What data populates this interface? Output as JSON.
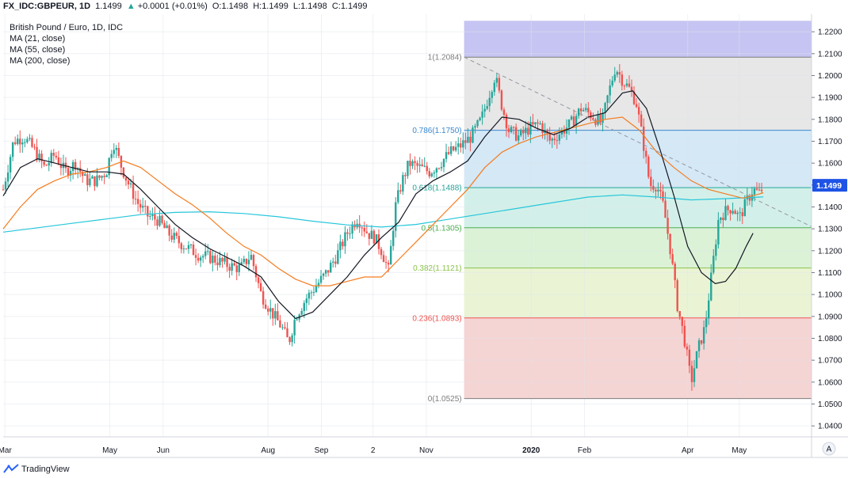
{
  "header": {
    "symbol": "FX_IDC:GBPEUR, 1D",
    "last": "1.1499",
    "change": "+0.0001 (+0.01%)",
    "o_label": "O:",
    "o": "1.1498",
    "h_label": "H:",
    "h": "1.1499",
    "l_label": "L:",
    "l": "1.1498",
    "c_label": "C:",
    "c": "1.1499",
    "up_color": "#26a69a"
  },
  "legend": {
    "title": "British Pound / Euro, 1D, IDC",
    "ma21": "MA (21, close)",
    "ma55": "MA (55, close)",
    "ma200": "MA (200, close)"
  },
  "footer": {
    "brand": "TradingView",
    "axis_mode": "A"
  },
  "chart_data": {
    "type": "candlestick",
    "ylim": [
      1.035,
      1.228
    ],
    "y_ticks": [
      "1.2200",
      "1.2100",
      "1.2000",
      "1.1900",
      "1.1800",
      "1.1700",
      "1.1600",
      "1.1500",
      "1.1400",
      "1.1300",
      "1.1200",
      "1.1100",
      "1.1000",
      "1.0900",
      "1.0800",
      "1.0700",
      "1.0600",
      "1.0500",
      "1.0400"
    ],
    "x_labels": [
      {
        "label": "Mar",
        "day": 1
      },
      {
        "label": "May",
        "day": 62
      },
      {
        "label": "Jun",
        "day": 93
      },
      {
        "label": "Aug",
        "day": 154
      },
      {
        "label": "Sep",
        "day": 185
      },
      {
        "label": "2",
        "day": 215
      },
      {
        "label": "Nov",
        "day": 246
      },
      {
        "label": "2020",
        "day": 307
      },
      {
        "label": "Feb",
        "day": 338
      },
      {
        "label": "Apr",
        "day": 398
      },
      {
        "label": "May",
        "day": 428
      }
    ],
    "x_range_days": [
      0,
      470
    ],
    "last_price": "1.1499",
    "price_color": "#1e53e5",
    "colors": {
      "up": "#26a69a",
      "down": "#ef5350",
      "ma21": "#131722",
      "ma55": "#f57c1f",
      "ma200": "#26c6da"
    },
    "fibonacci": {
      "start_day": 268,
      "end_day": 470,
      "levels": [
        {
          "label": "1(1.2084)",
          "value": 1.2084,
          "color": "#7d7d7d"
        },
        {
          "label": "0.786(1.1750)",
          "value": 1.175,
          "color": "#3a88cf"
        },
        {
          "label": "0.618(1.1488)",
          "value": 1.1488,
          "color": "#26a69a"
        },
        {
          "label": "0.5(1.1305)",
          "value": 1.1305,
          "color": "#4caf50"
        },
        {
          "label": "0.382(1.1121)",
          "value": 1.1121,
          "color": "#8bc34a"
        },
        {
          "label": "0.236(1.0893)",
          "value": 1.0893,
          "color": "#ef5350"
        },
        {
          "label": "0(1.0525)",
          "value": 1.0525,
          "color": "#7d7d7d"
        }
      ],
      "zones": [
        {
          "from": 1.2084,
          "to": 1.225,
          "color": "#c5c4f2"
        },
        {
          "from": 1.175,
          "to": 1.2084,
          "color": "#e7e7e7"
        },
        {
          "from": 1.1488,
          "to": 1.175,
          "color": "#d4e8f6"
        },
        {
          "from": 1.1305,
          "to": 1.1488,
          "color": "#d2f0e9"
        },
        {
          "from": 1.1121,
          "to": 1.1305,
          "color": "#dbf2d7"
        },
        {
          "from": 1.0893,
          "to": 1.1121,
          "color": "#eaf4d4"
        },
        {
          "from": 1.0525,
          "to": 1.0893,
          "color": "#f5d4d4"
        }
      ]
    },
    "trendline": [
      [
        268,
        1.2084
      ],
      [
        470,
        1.131
      ]
    ],
    "price_path": [
      [
        0,
        1.148
      ],
      [
        6,
        1.17
      ],
      [
        12,
        1.172
      ],
      [
        18,
        1.166
      ],
      [
        24,
        1.158
      ],
      [
        30,
        1.164
      ],
      [
        36,
        1.156
      ],
      [
        42,
        1.16
      ],
      [
        48,
        1.152
      ],
      [
        54,
        1.152
      ],
      [
        60,
        1.156
      ],
      [
        64,
        1.17
      ],
      [
        68,
        1.16
      ],
      [
        72,
        1.152
      ],
      [
        78,
        1.142
      ],
      [
        84,
        1.136
      ],
      [
        90,
        1.134
      ],
      [
        96,
        1.128
      ],
      [
        102,
        1.124
      ],
      [
        108,
        1.121
      ],
      [
        114,
        1.118
      ],
      [
        120,
        1.117
      ],
      [
        126,
        1.115
      ],
      [
        132,
        1.113
      ],
      [
        138,
        1.112
      ],
      [
        144,
        1.118
      ],
      [
        150,
        1.1
      ],
      [
        156,
        1.092
      ],
      [
        162,
        1.085
      ],
      [
        166,
        1.078
      ],
      [
        170,
        1.09
      ],
      [
        176,
        1.098
      ],
      [
        182,
        1.104
      ],
      [
        188,
        1.11
      ],
      [
        194,
        1.118
      ],
      [
        200,
        1.128
      ],
      [
        206,
        1.135
      ],
      [
        212,
        1.128
      ],
      [
        216,
        1.126
      ],
      [
        220,
        1.12
      ],
      [
        224,
        1.111
      ],
      [
        228,
        1.14
      ],
      [
        232,
        1.152
      ],
      [
        236,
        1.16
      ],
      [
        242,
        1.158
      ],
      [
        248,
        1.156
      ],
      [
        254,
        1.16
      ],
      [
        260,
        1.165
      ],
      [
        266,
        1.168
      ],
      [
        272,
        1.172
      ],
      [
        278,
        1.18
      ],
      [
        282,
        1.19
      ],
      [
        286,
        1.2
      ],
      [
        290,
        1.186
      ],
      [
        294,
        1.175
      ],
      [
        300,
        1.172
      ],
      [
        306,
        1.176
      ],
      [
        312,
        1.178
      ],
      [
        318,
        1.17
      ],
      [
        324,
        1.174
      ],
      [
        330,
        1.178
      ],
      [
        336,
        1.185
      ],
      [
        342,
        1.182
      ],
      [
        348,
        1.178
      ],
      [
        352,
        1.192
      ],
      [
        356,
        1.204
      ],
      [
        360,
        1.198
      ],
      [
        364,
        1.194
      ],
      [
        368,
        1.188
      ],
      [
        372,
        1.17
      ],
      [
        376,
        1.15
      ],
      [
        380,
        1.15
      ],
      [
        384,
        1.14
      ],
      [
        388,
        1.12
      ],
      [
        392,
        1.095
      ],
      [
        396,
        1.08
      ],
      [
        400,
        1.06
      ],
      [
        404,
        1.075
      ],
      [
        408,
        1.085
      ],
      [
        412,
        1.11
      ],
      [
        416,
        1.135
      ],
      [
        420,
        1.138
      ],
      [
        424,
        1.14
      ],
      [
        428,
        1.135
      ],
      [
        432,
        1.142
      ],
      [
        436,
        1.148
      ],
      [
        440,
        1.146
      ],
      [
        442,
        1.1499
      ]
    ],
    "ma21": [
      [
        0,
        1.145
      ],
      [
        10,
        1.158
      ],
      [
        20,
        1.162
      ],
      [
        30,
        1.16
      ],
      [
        40,
        1.158
      ],
      [
        50,
        1.156
      ],
      [
        60,
        1.156
      ],
      [
        70,
        1.155
      ],
      [
        80,
        1.148
      ],
      [
        90,
        1.14
      ],
      [
        100,
        1.132
      ],
      [
        110,
        1.126
      ],
      [
        120,
        1.121
      ],
      [
        130,
        1.117
      ],
      [
        140,
        1.113
      ],
      [
        150,
        1.108
      ],
      [
        160,
        1.097
      ],
      [
        170,
        1.089
      ],
      [
        180,
        1.092
      ],
      [
        190,
        1.1
      ],
      [
        200,
        1.108
      ],
      [
        210,
        1.118
      ],
      [
        220,
        1.126
      ],
      [
        230,
        1.133
      ],
      [
        240,
        1.146
      ],
      [
        250,
        1.152
      ],
      [
        260,
        1.156
      ],
      [
        270,
        1.161
      ],
      [
        280,
        1.172
      ],
      [
        290,
        1.181
      ],
      [
        300,
        1.18
      ],
      [
        310,
        1.176
      ],
      [
        320,
        1.173
      ],
      [
        330,
        1.176
      ],
      [
        340,
        1.181
      ],
      [
        350,
        1.183
      ],
      [
        360,
        1.192
      ],
      [
        366,
        1.193
      ],
      [
        374,
        1.185
      ],
      [
        382,
        1.166
      ],
      [
        390,
        1.145
      ],
      [
        398,
        1.122
      ],
      [
        406,
        1.11
      ],
      [
        414,
        1.105
      ],
      [
        420,
        1.106
      ],
      [
        426,
        1.112
      ],
      [
        432,
        1.122
      ],
      [
        436,
        1.128
      ]
    ],
    "ma55": [
      [
        0,
        1.13
      ],
      [
        10,
        1.14
      ],
      [
        20,
        1.148
      ],
      [
        30,
        1.152
      ],
      [
        40,
        1.155
      ],
      [
        50,
        1.156
      ],
      [
        60,
        1.158
      ],
      [
        70,
        1.161
      ],
      [
        80,
        1.158
      ],
      [
        90,
        1.152
      ],
      [
        100,
        1.146
      ],
      [
        110,
        1.141
      ],
      [
        120,
        1.135
      ],
      [
        130,
        1.128
      ],
      [
        140,
        1.122
      ],
      [
        150,
        1.118
      ],
      [
        160,
        1.112
      ],
      [
        170,
        1.107
      ],
      [
        180,
        1.104
      ],
      [
        190,
        1.104
      ],
      [
        200,
        1.106
      ],
      [
        210,
        1.108
      ],
      [
        220,
        1.108
      ],
      [
        230,
        1.116
      ],
      [
        240,
        1.124
      ],
      [
        250,
        1.132
      ],
      [
        260,
        1.14
      ],
      [
        270,
        1.148
      ],
      [
        280,
        1.158
      ],
      [
        290,
        1.165
      ],
      [
        300,
        1.169
      ],
      [
        310,
        1.172
      ],
      [
        320,
        1.174
      ],
      [
        330,
        1.176
      ],
      [
        340,
        1.178
      ],
      [
        350,
        1.18
      ],
      [
        360,
        1.181
      ],
      [
        370,
        1.175
      ],
      [
        380,
        1.165
      ],
      [
        390,
        1.158
      ],
      [
        400,
        1.152
      ],
      [
        410,
        1.148
      ],
      [
        420,
        1.146
      ],
      [
        430,
        1.144
      ],
      [
        440,
        1.146
      ],
      [
        442,
        1.1465
      ]
    ],
    "ma200": [
      [
        0,
        1.1285
      ],
      [
        20,
        1.1305
      ],
      [
        40,
        1.1325
      ],
      [
        60,
        1.1345
      ],
      [
        80,
        1.1365
      ],
      [
        100,
        1.1375
      ],
      [
        120,
        1.1378
      ],
      [
        140,
        1.137
      ],
      [
        160,
        1.1355
      ],
      [
        180,
        1.1335
      ],
      [
        200,
        1.1318
      ],
      [
        220,
        1.1308
      ],
      [
        240,
        1.132
      ],
      [
        260,
        1.1345
      ],
      [
        280,
        1.137
      ],
      [
        300,
        1.1395
      ],
      [
        320,
        1.142
      ],
      [
        340,
        1.1445
      ],
      [
        360,
        1.1455
      ],
      [
        380,
        1.1445
      ],
      [
        400,
        1.1432
      ],
      [
        420,
        1.1438
      ],
      [
        440,
        1.1445
      ],
      [
        442,
        1.1446
      ]
    ]
  }
}
